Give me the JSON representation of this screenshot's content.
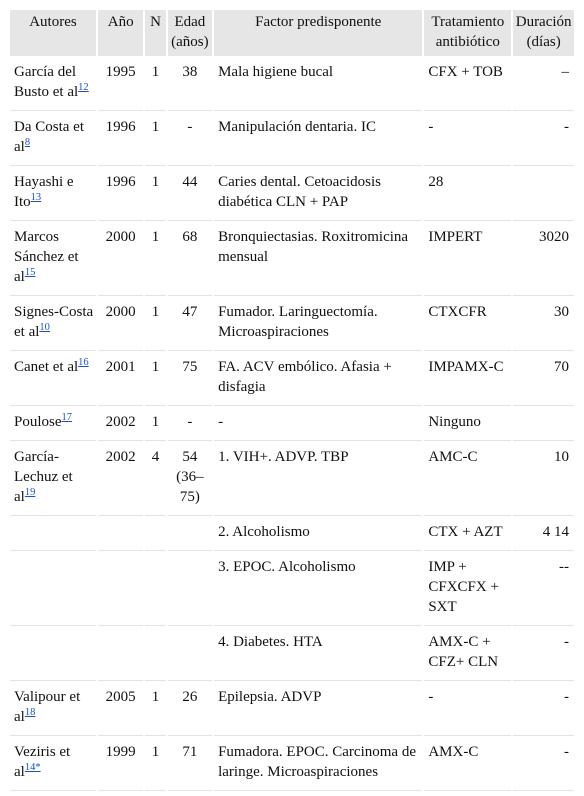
{
  "table": {
    "headers": {
      "autores": "Autores",
      "anio": "Año",
      "n": "N",
      "edad": "Edad (años)",
      "factor": "Factor predisponente",
      "tratamiento": "Tratamiento antibiótico",
      "duracion": "Duración (días)"
    },
    "rows": [
      {
        "autor": "García del Busto et al",
        "ref": "12",
        "anio": "1995",
        "n": "1",
        "edad": "38",
        "factor": "Mala higiene bucal",
        "tratamiento": "CFX + TOB",
        "duracion": "–"
      },
      {
        "autor": "Da Costa et al",
        "ref": "8",
        "anio": "1996",
        "n": "1",
        "edad": "-",
        "factor": "Manipulación dentaria. IC",
        "tratamiento": "-",
        "duracion": "-"
      },
      {
        "autor": "Hayashi e Ito",
        "ref": "13",
        "anio": "1996",
        "n": "1",
        "edad": "44",
        "factor": "Caries dental. Cetoacidosis diabética CLN + PAP",
        "tratamiento": "28",
        "duracion": ""
      },
      {
        "autor": "Marcos Sánchez et al",
        "ref": "15",
        "anio": "2000",
        "n": "1",
        "edad": "68",
        "factor": "Bronquiectasias. Roxitromicina mensual",
        "tratamiento": "IMPERT",
        "duracion": "3020"
      },
      {
        "autor": "Signes-Costa et al",
        "ref": "10",
        "anio": "2000",
        "n": "1",
        "edad": "47",
        "factor": "Fumador. Laringuectomía. Microaspiraciones",
        "tratamiento": "CTXCFR",
        "duracion": "30"
      },
      {
        "autor": "Canet et al",
        "ref": "16",
        "anio": "2001",
        "n": "1",
        "edad": "75",
        "factor": "FA. ACV embólico. Afasia + disfagia",
        "tratamiento": "IMPAMX-C",
        "duracion": "70"
      },
      {
        "autor": "Poulose",
        "ref": "17",
        "anio": "2002",
        "n": "1",
        "edad": "-",
        "factor": "-",
        "tratamiento": "Ninguno",
        "duracion": ""
      },
      {
        "autor": "García-Lechuz et al",
        "ref": "19",
        "anio": "2002",
        "n": "4",
        "edad": "54 (36–75)",
        "factor": "1. VIH+. ADVP. TBP",
        "tratamiento": "AMC-C",
        "duracion": "10"
      },
      {
        "autor": "",
        "ref": "",
        "anio": "",
        "n": "",
        "edad": "",
        "factor": "2. Alcoholismo",
        "tratamiento": "CTX + AZT",
        "duracion": "4 14"
      },
      {
        "autor": "",
        "ref": "",
        "anio": "",
        "n": "",
        "edad": "",
        "factor": "3. EPOC. Alcoholismo",
        "tratamiento": "IMP + CFXCFX + SXT",
        "duracion": "--"
      },
      {
        "autor": "",
        "ref": "",
        "anio": "",
        "n": "",
        "edad": "",
        "factor": "4. Diabetes. HTA",
        "tratamiento": "AMX-C + CFZ+ CLN",
        "duracion": "-"
      },
      {
        "autor": "Valipour et al",
        "ref": "18",
        "anio": "2005",
        "n": "1",
        "edad": "26",
        "factor": "Epilepsia. ADVP",
        "tratamiento": "-",
        "duracion": "-"
      },
      {
        "autor": "Veziris et al",
        "ref": "14",
        "ref_mark": "*",
        "anio": "1999",
        "n": "1",
        "edad": "71",
        "factor": "Fumadora. EPOC. Carcinoma de laringe. Microaspiraciones",
        "tratamiento": "AMX-C",
        "duracion": "-"
      }
    ]
  }
}
